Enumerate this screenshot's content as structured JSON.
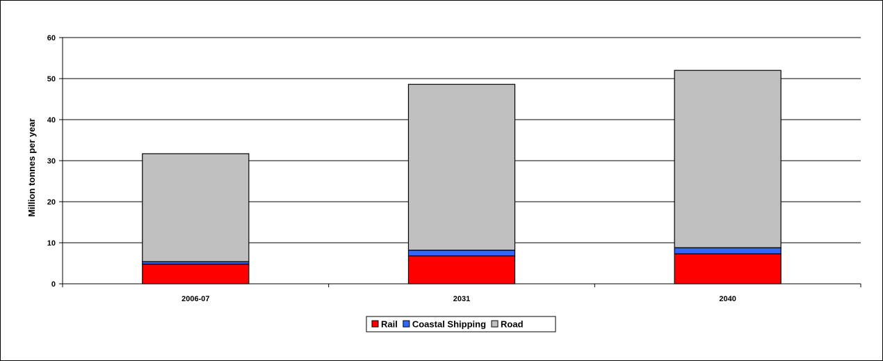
{
  "chart_data": {
    "type": "bar",
    "stacked": true,
    "categories": [
      "2006-07",
      "2031",
      "2040"
    ],
    "series": [
      {
        "name": "Rail",
        "color": "#ff0000",
        "values": [
          4.8,
          6.8,
          7.3
        ]
      },
      {
        "name": "Coastal Shipping",
        "color": "#3366ff",
        "values": [
          0.6,
          1.4,
          1.5
        ]
      },
      {
        "name": "Road",
        "color": "#c0c0c0",
        "values": [
          26.3,
          40.4,
          43.2
        ]
      }
    ],
    "ylabel": "Million tonnes per year",
    "xlabel": "",
    "ylim": [
      0,
      60
    ],
    "yticks": [
      0,
      10,
      20,
      30,
      40,
      50,
      60
    ],
    "grid": true,
    "legend_position": "bottom"
  }
}
